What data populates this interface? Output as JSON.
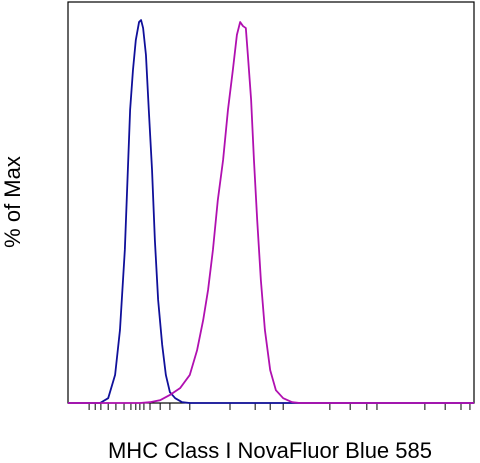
{
  "chart_data": {
    "type": "line",
    "xlabel": "MHC Class I NovaFluor Blue 585",
    "ylabel": "% of Max",
    "xlim": [
      0,
      100
    ],
    "ylim": [
      0,
      100
    ],
    "xticks": [
      5.2,
      6.7,
      8.1,
      9.9,
      11.8,
      13.8,
      15.5,
      16.7,
      17.7,
      18.7,
      20.2,
      22.7,
      25.1,
      30.0,
      39.9,
      46.1,
      49.8,
      53.0,
      64.5,
      69.5,
      73.6,
      76.1,
      87.9,
      92.9,
      96.8,
      99.0
    ],
    "series": [
      {
        "color": "#10109a",
        "x": [
          0,
          7.9,
          9.9,
          11.6,
          12.8,
          14.0,
          15.3,
          16.0,
          16.7,
          17.5,
          18.0,
          18.5,
          19.2,
          19.9,
          20.7,
          21.4,
          22.2,
          23.2,
          24.1,
          25.1,
          26.4,
          28.1,
          30.0,
          100
        ],
        "values": [
          0,
          0,
          1.2,
          7.0,
          18.2,
          38.2,
          73.1,
          83.0,
          90.5,
          95.0,
          95.5,
          93.5,
          86.8,
          73.1,
          58.1,
          40.6,
          25.7,
          14.5,
          7.0,
          2.7,
          1.2,
          0.2,
          0,
          0
        ]
      },
      {
        "color": "#b010b0",
        "x": [
          0,
          17.7,
          20.2,
          22.7,
          25.1,
          27.6,
          30.0,
          31.8,
          33.3,
          34.5,
          35.7,
          36.9,
          38.2,
          39.4,
          40.6,
          41.6,
          42.4,
          43.1,
          43.8,
          44.3,
          45.1,
          45.8,
          46.6,
          47.5,
          48.5,
          49.8,
          51.2,
          53.0,
          55.2,
          57.1,
          100
        ],
        "values": [
          0,
          0,
          0.2,
          0.7,
          2.0,
          3.7,
          7.0,
          13.2,
          20.7,
          28.2,
          38.2,
          50.6,
          60.6,
          73.1,
          83.0,
          91.8,
          95.0,
          94.0,
          93.5,
          86.8,
          75.6,
          60.6,
          45.6,
          30.7,
          18.2,
          8.2,
          3.2,
          1.2,
          0.2,
          0,
          0
        ]
      }
    ]
  }
}
